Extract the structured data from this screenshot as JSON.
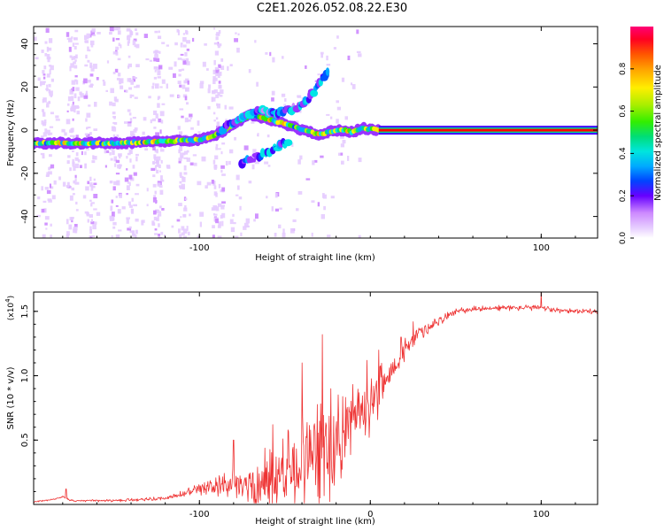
{
  "figure_title": "C2E1.2026.052.08.22.E30",
  "colors": {
    "snr_line": "#ee3333",
    "axis": "#000000"
  },
  "chart_data": [
    {
      "type": "heatmap",
      "name": "spectrogram",
      "xlabel": "Height of straight line (km)",
      "ylabel": "Frequency (Hz)",
      "xlim": [
        -197,
        133
      ],
      "ylim": [
        -50,
        48
      ],
      "x_ticks": [
        -100,
        100
      ],
      "y_ticks": [
        -40,
        -20,
        0,
        20,
        40
      ],
      "grid": false,
      "colorbar": {
        "label": "Normalized spectral amplitude",
        "range": [
          0,
          1
        ],
        "ticks": [
          0.0,
          0.2,
          0.4,
          0.6,
          0.8
        ],
        "tick_labels": [
          "0.0",
          "0.2",
          "0.4",
          "0.6",
          "0.8"
        ],
        "colormap": [
          "#ffffff",
          "#e6ccff",
          "#cc88ff",
          "#9933ff",
          "#4400ff",
          "#0055ff",
          "#00aaff",
          "#00e5e5",
          "#00dd88",
          "#33ee00",
          "#aaee00",
          "#ffee00",
          "#ffaa00",
          "#ff5500",
          "#ff0000",
          "#ff0077"
        ]
      },
      "features": {
        "steady_line": {
          "x_start": 5,
          "x_end": 133,
          "freq": 0,
          "amplitude": 0.95
        },
        "wander_line": [
          [
            -197,
            -6
          ],
          [
            -170,
            -6
          ],
          [
            -150,
            -6
          ],
          [
            -130,
            -5.5
          ],
          [
            -115,
            -5
          ],
          [
            -100,
            -4.5
          ],
          [
            -90,
            -2
          ],
          [
            -85,
            0
          ],
          [
            -80,
            3
          ],
          [
            -75,
            5
          ],
          [
            -70,
            7
          ],
          [
            -60,
            5
          ],
          [
            -50,
            3
          ],
          [
            -40,
            0
          ],
          [
            -30,
            -2
          ],
          [
            -20,
            0
          ],
          [
            -15,
            0
          ],
          [
            -10,
            -1
          ],
          [
            -5,
            1
          ],
          [
            0,
            0.5
          ],
          [
            5,
            0
          ]
        ],
        "upper_branch": [
          [
            -88,
            0
          ],
          [
            -80,
            4
          ],
          [
            -72,
            7
          ],
          [
            -65,
            9
          ],
          [
            -55,
            8
          ],
          [
            -45,
            10
          ],
          [
            -38,
            13
          ],
          [
            -33,
            18
          ],
          [
            -28,
            24
          ],
          [
            -25,
            27
          ]
        ],
        "lower_branch": [
          [
            -75,
            -15
          ],
          [
            -68,
            -13
          ],
          [
            -62,
            -11
          ],
          [
            -55,
            -8
          ],
          [
            -48,
            -5
          ]
        ]
      }
    },
    {
      "type": "line",
      "name": "snr",
      "xlabel": "Height of straight line (km)",
      "ylabel": "SNR (10 * v/v)",
      "y_scale_label": "(x10",
      "y_scale_exp": "4",
      "y_scale_close": ")",
      "xlim": [
        -197,
        133
      ],
      "ylim": [
        0,
        1.65
      ],
      "x_ticks": [
        -100,
        0,
        100
      ],
      "y_ticks": [
        0.5,
        1.0,
        1.5
      ],
      "y_tick_labels": [
        "0.5",
        "1.0",
        "1.5"
      ],
      "grid": false,
      "series": [
        {
          "name": "SNR",
          "trend": [
            [
              -197,
              0.02
            ],
            [
              -185,
              0.04
            ],
            [
              -180,
              0.06
            ],
            [
              -175,
              0.03
            ],
            [
              -150,
              0.03
            ],
            [
              -120,
              0.05
            ],
            [
              -110,
              0.08
            ],
            [
              -100,
              0.12
            ],
            [
              -90,
              0.14
            ],
            [
              -80,
              0.18
            ],
            [
              -70,
              0.15
            ],
            [
              -60,
              0.2
            ],
            [
              -50,
              0.28
            ],
            [
              -40,
              0.35
            ],
            [
              -30,
              0.42
            ],
            [
              -25,
              0.48
            ],
            [
              -20,
              0.55
            ],
            [
              -15,
              0.62
            ],
            [
              -10,
              0.68
            ],
            [
              -5,
              0.75
            ],
            [
              0,
              0.8
            ],
            [
              5,
              0.9
            ],
            [
              10,
              1.0
            ],
            [
              20,
              1.2
            ],
            [
              30,
              1.35
            ],
            [
              40,
              1.43
            ],
            [
              50,
              1.5
            ],
            [
              60,
              1.52
            ],
            [
              80,
              1.53
            ],
            [
              100,
              1.53
            ],
            [
              110,
              1.51
            ],
            [
              133,
              1.5
            ]
          ],
          "noise_envelope": [
            [
              -197,
              0.005
            ],
            [
              -120,
              0.015
            ],
            [
              -100,
              0.05
            ],
            [
              -80,
              0.12
            ],
            [
              -60,
              0.3
            ],
            [
              -40,
              0.4
            ],
            [
              -25,
              0.45
            ],
            [
              -10,
              0.3
            ],
            [
              0,
              0.25
            ],
            [
              10,
              0.15
            ],
            [
              30,
              0.06
            ],
            [
              50,
              0.025
            ],
            [
              133,
              0.02
            ]
          ],
          "spikes": [
            [
              -178,
              0.12
            ],
            [
              -80,
              0.5
            ],
            [
              -57,
              0.62
            ],
            [
              -40,
              1.1
            ],
            [
              -28,
              1.32
            ],
            [
              -23,
              0.9
            ],
            [
              -12,
              0.72
            ],
            [
              -2,
              1.12
            ],
            [
              5,
              1.2
            ],
            [
              18,
              1.3
            ],
            [
              25,
              1.42
            ],
            [
              100,
              1.65
            ]
          ]
        }
      ]
    }
  ]
}
